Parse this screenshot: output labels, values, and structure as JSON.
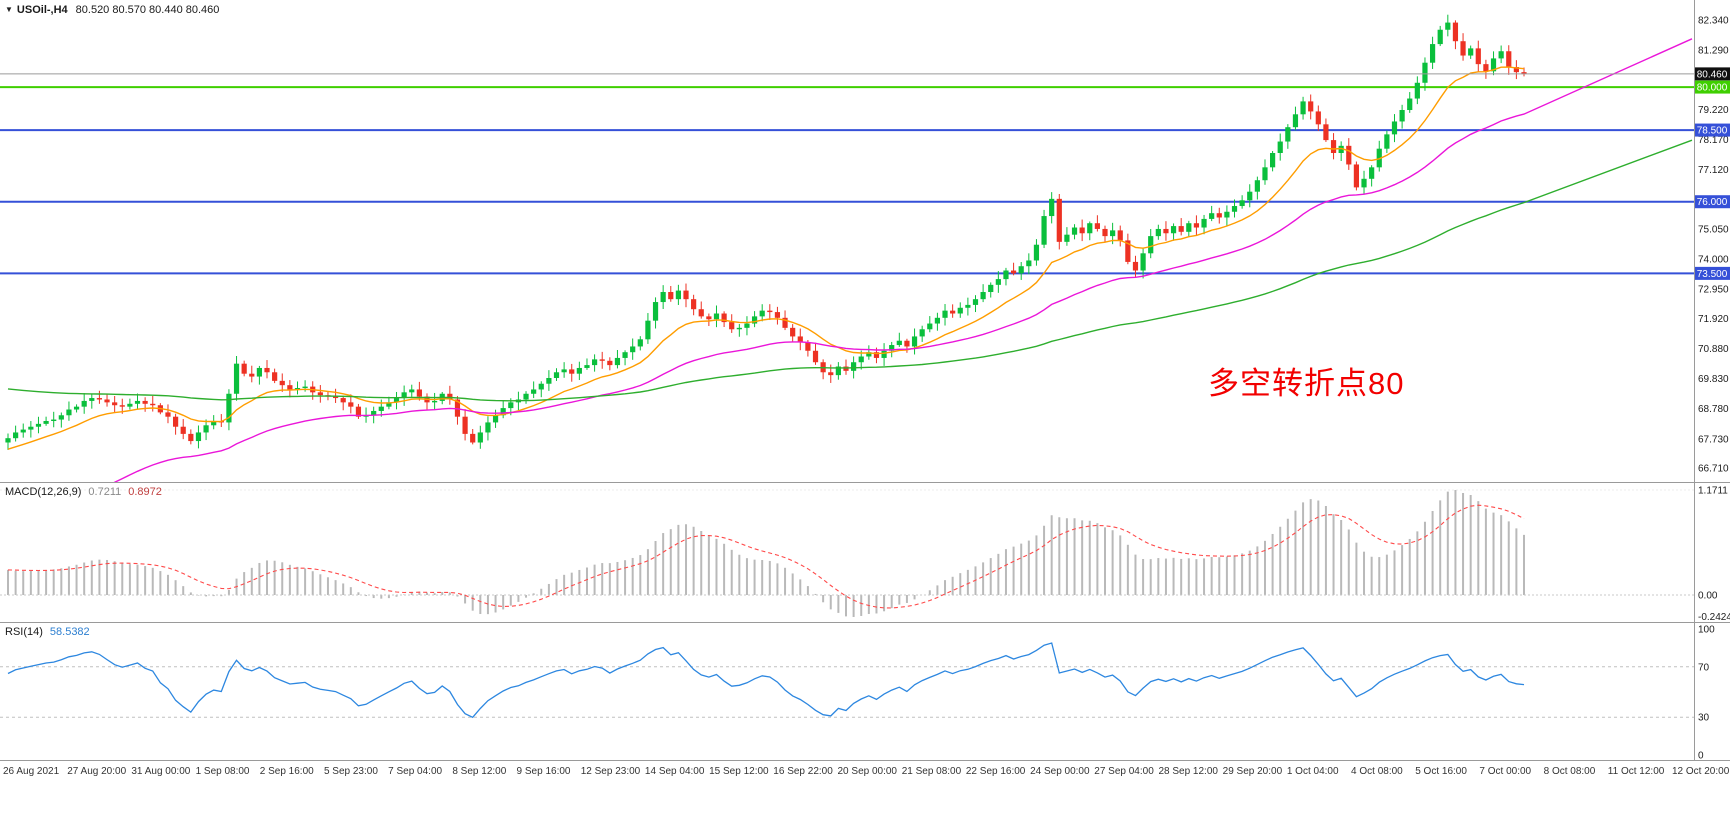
{
  "title": {
    "marker": "▼",
    "symbol": "USOil-,H4",
    "ohlc": "80.520 80.570 80.440 80.460"
  },
  "annotation": {
    "text": "多空转折点80",
    "color": "#f20000"
  },
  "colors": {
    "background": "#ffffff",
    "candle_up": "#0abf3c",
    "candle_down": "#ed3123",
    "macd_hist": "#b9b9b9",
    "macd_signal": "#ff4a4a",
    "rsi_line": "#2d87e0",
    "axis_text": "#1c1c1c",
    "separator": "#9a9a9a",
    "time_text": "#333333"
  },
  "price_boxes": [
    {
      "text": "80.460",
      "value": 80.46,
      "bg": "#101010",
      "fg": "#ffffff",
      "role": "current-price"
    },
    {
      "text": "80.000",
      "value": 80.0,
      "bg": "#3fcf00",
      "fg": "#ffffff",
      "role": "horizontal-line-level"
    },
    {
      "text": "78.500",
      "value": 78.5,
      "bg": "#3550d8",
      "fg": "#ffffff",
      "role": "horizontal-line-level"
    },
    {
      "text": "76.000",
      "value": 76.0,
      "bg": "#3550d8",
      "fg": "#ffffff",
      "role": "horizontal-line-level"
    },
    {
      "text": "73.500",
      "value": 73.5,
      "bg": "#3550d8",
      "fg": "#ffffff",
      "role": "horizontal-line-level"
    }
  ],
  "hlines": [
    {
      "value": 80.0,
      "color": "#3fcf00",
      "width": 2
    },
    {
      "value": 78.5,
      "color": "#3550d8",
      "width": 2
    },
    {
      "value": 76.0,
      "color": "#3550d8",
      "width": 2
    },
    {
      "value": 73.5,
      "color": "#3550d8",
      "width": 2
    }
  ],
  "current_price_line": {
    "value": 80.46,
    "color": "#9a9a9a"
  },
  "chart_data": {
    "type": "candlestick",
    "symbol": "USOil",
    "timeframe": "H4",
    "ohlc_display": {
      "open": "80.520",
      "high": "80.570",
      "low": "80.440",
      "close": "80.460"
    },
    "price_axis": {
      "values": [
        82.34,
        81.29,
        79.22,
        78.17,
        77.12,
        75.05,
        74.0,
        72.95,
        71.92,
        70.88,
        69.83,
        68.78,
        67.73,
        66.71
      ]
    },
    "first_open": 67.6,
    "closes": [
      67.75,
      67.95,
      68.05,
      68.15,
      68.25,
      68.35,
      68.4,
      68.55,
      68.75,
      68.85,
      69.05,
      69.15,
      69.1,
      69.0,
      68.9,
      68.85,
      68.95,
      69.05,
      68.95,
      68.9,
      68.65,
      68.5,
      68.15,
      67.9,
      67.65,
      67.95,
      68.2,
      68.35,
      68.3,
      69.3,
      70.35,
      70.0,
      69.9,
      70.2,
      70.05,
      69.75,
      69.6,
      69.45,
      69.5,
      69.55,
      69.35,
      69.25,
      69.2,
      69.15,
      69.0,
      68.85,
      68.5,
      68.55,
      68.7,
      68.85,
      69.0,
      69.15,
      69.35,
      69.45,
      69.2,
      69.0,
      69.05,
      69.3,
      69.1,
      68.5,
      67.9,
      67.6,
      67.95,
      68.3,
      68.55,
      68.8,
      69.0,
      69.1,
      69.3,
      69.45,
      69.65,
      69.85,
      70.05,
      70.15,
      70.0,
      70.2,
      70.3,
      70.5,
      70.45,
      70.3,
      70.55,
      70.75,
      70.95,
      71.2,
      71.85,
      72.5,
      72.85,
      72.6,
      72.9,
      72.6,
      72.25,
      72.0,
      71.9,
      72.1,
      71.8,
      71.55,
      71.6,
      71.75,
      72.0,
      72.2,
      72.15,
      71.95,
      71.6,
      71.3,
      71.1,
      70.8,
      70.4,
      70.05,
      69.95,
      70.25,
      70.1,
      70.4,
      70.6,
      70.75,
      70.55,
      70.8,
      71.0,
      71.15,
      70.95,
      71.3,
      71.55,
      71.75,
      71.95,
      72.2,
      72.1,
      72.3,
      72.4,
      72.6,
      72.85,
      73.1,
      73.3,
      73.6,
      73.5,
      73.75,
      73.95,
      74.5,
      75.5,
      76.1,
      74.6,
      74.85,
      75.1,
      74.9,
      75.25,
      75.05,
      74.8,
      75.0,
      74.65,
      73.9,
      73.6,
      74.2,
      74.8,
      75.05,
      74.9,
      75.15,
      74.95,
      75.25,
      75.1,
      75.4,
      75.6,
      75.45,
      75.65,
      75.85,
      76.05,
      76.35,
      76.75,
      77.2,
      77.7,
      78.1,
      78.6,
      79.05,
      79.5,
      79.15,
      78.7,
      78.15,
      77.7,
      77.95,
      77.3,
      76.5,
      76.8,
      77.2,
      77.85,
      78.35,
      78.8,
      79.2,
      79.6,
      80.15,
      80.85,
      81.5,
      82.0,
      82.25,
      81.6,
      81.1,
      81.35,
      80.8,
      80.55,
      81.0,
      81.25,
      80.7,
      80.52,
      80.46
    ],
    "moving_averages": [
      {
        "name": "fast",
        "period": 13,
        "seed": 67.3,
        "color": "#ff9d00"
      },
      {
        "name": "mid",
        "period": 40,
        "seed": 63.5,
        "color": "#ea16d9"
      },
      {
        "name": "slow",
        "period": 110,
        "seed": 69.5,
        "color": "#2eae2e"
      }
    ],
    "macd": {
      "label": "MACD(12,26,9)",
      "value_main": "0.7211",
      "value_signal": "0.8972",
      "fast": 12,
      "slow": 26,
      "signal_period": 9,
      "max": 1.1711,
      "min": -0.2424,
      "axis_labels": [
        "1.1711",
        "0.00",
        "-0.2424"
      ]
    },
    "rsi": {
      "label": "RSI(14)",
      "value": "58.5382",
      "period": 14,
      "levels": [
        70,
        30
      ],
      "axis_labels": [
        "100",
        "70",
        "30",
        "0"
      ]
    },
    "time_labels": [
      "26 Aug 2021",
      "27 Aug 20:00",
      "31 Aug 00:00",
      "1 Sep 08:00",
      "2 Sep 16:00",
      "5 Sep 23:00",
      "7 Sep 04:00",
      "8 Sep 12:00",
      "9 Sep 16:00",
      "12 Sep 23:00",
      "14 Sep 04:00",
      "15 Sep 12:00",
      "16 Sep 22:00",
      "20 Sep 00:00",
      "21 Sep 08:00",
      "22 Sep 16:00",
      "24 Sep 00:00",
      "27 Sep 04:00",
      "28 Sep 12:00",
      "29 Sep 20:00",
      "1 Oct 04:00",
      "4 Oct 08:00",
      "5 Oct 16:00",
      "7 Oct 00:00",
      "8 Oct 08:00",
      "11 Oct 12:00",
      "12 Oct 20:00"
    ]
  }
}
